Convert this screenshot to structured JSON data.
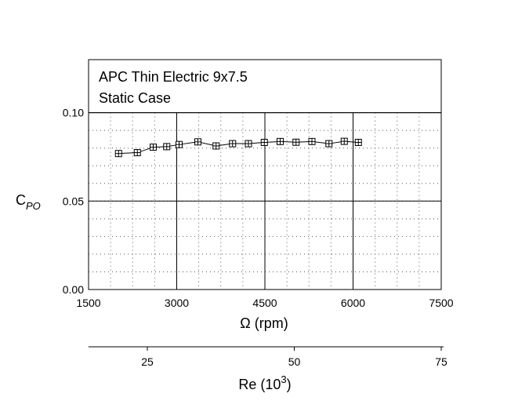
{
  "chart_data": {
    "type": "scatter",
    "title": [
      "APC Thin Electric 9x7.5",
      "Static Case"
    ],
    "xlabel": "Ω (rpm)",
    "ylabel": {
      "main": "C",
      "sub": "PO"
    },
    "xlim": [
      1500,
      7500
    ],
    "ylim": [
      0.0,
      0.13
    ],
    "xticks": [
      1500,
      3000,
      4500,
      6000,
      7500
    ],
    "xtick_labels": [
      "1500",
      "3000",
      "4500",
      "6000",
      "7500"
    ],
    "yticks": [
      0.0,
      0.05,
      0.1
    ],
    "ytick_labels": [
      "0.00",
      "0.05",
      "0.10"
    ],
    "minor_grid": true,
    "marker": "square-plus",
    "line": true,
    "series": [
      {
        "x": [
          2010,
          2330,
          2600,
          2830,
          3040,
          3360,
          3670,
          3950,
          4220,
          4490,
          4760,
          5030,
          5300,
          5590,
          5850,
          6090
        ],
        "y": [
          0.0769,
          0.0774,
          0.0805,
          0.0808,
          0.082,
          0.0835,
          0.0812,
          0.0825,
          0.0825,
          0.0832,
          0.0837,
          0.0833,
          0.0837,
          0.0825,
          0.0838,
          0.0832
        ]
      }
    ],
    "secondary_axis": {
      "label": {
        "main": "Re (10",
        "sup": "3",
        "end": ")"
      },
      "xlim": [
        15,
        75
      ],
      "ticks": [
        25,
        50,
        75
      ],
      "tick_labels": [
        "25",
        "50",
        "75"
      ]
    }
  }
}
